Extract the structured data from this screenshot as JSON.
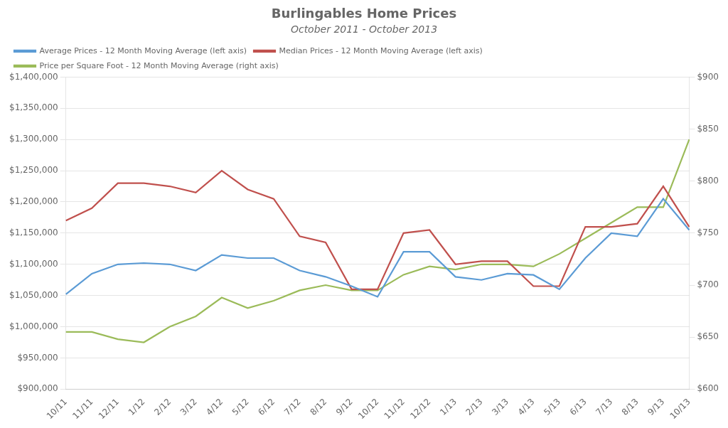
{
  "chart_data": {
    "type": "line",
    "title": "Burlingables Home Prices",
    "subtitle": "October 2011 - October 2013",
    "categories": [
      "10/11",
      "11/11",
      "12/11",
      "1/12",
      "2/12",
      "3/12",
      "4/12",
      "5/12",
      "6/12",
      "7/12",
      "8/12",
      "9/12",
      "10/12",
      "11/12",
      "12/12",
      "1/13",
      "2/13",
      "3/13",
      "4/13",
      "5/13",
      "6/13",
      "7/13",
      "8/13",
      "9/13",
      "10/13"
    ],
    "series": [
      {
        "name": "Average Prices - 12 Month Moving Average (left axis)",
        "color": "#5b9bd5",
        "values": [
          1052000,
          1085000,
          1100000,
          1102000,
          1100000,
          1090000,
          1115000,
          1110000,
          1110000,
          1090000,
          1080000,
          1065000,
          1048000,
          1120000,
          1120000,
          1080000,
          1075000,
          1085000,
          1083000,
          1060000,
          1110000,
          1150000,
          1145000,
          1205000,
          1155000
        ]
      },
      {
        "name": "Median Prices - 12 Month Moving Average (left axis)",
        "color": "#c0504d",
        "values": [
          1170000,
          1190000,
          1230000,
          1230000,
          1225000,
          1215000,
          1250000,
          1220000,
          1205000,
          1145000,
          1135000,
          1060000,
          1060000,
          1150000,
          1155000,
          1100000,
          1105000,
          1105000,
          1065000,
          1065000,
          1160000,
          1160000,
          1165000,
          1225000,
          1160000
        ]
      },
      {
        "name": "Price per Square Foot - 12 Month Moving Average (right axis)",
        "color": "#9bbb59",
        "axis": "y2",
        "values": [
          655,
          655,
          648,
          645,
          660,
          670,
          688,
          678,
          685,
          695,
          700,
          695,
          695,
          710,
          718,
          715,
          720,
          720,
          718,
          730,
          745,
          760,
          775,
          775,
          840
        ]
      }
    ],
    "ylim": [
      900000,
      1400000
    ],
    "yticks": [
      {
        "value": 900000,
        "label": "$900,000"
      },
      {
        "value": 950000,
        "label": "$950,000"
      },
      {
        "value": 1000000,
        "label": "$1,000,000"
      },
      {
        "value": 1050000,
        "label": "$1,050,000"
      },
      {
        "value": 1100000,
        "label": "$1,100,000"
      },
      {
        "value": 1150000,
        "label": "$1,150,000"
      },
      {
        "value": 1200000,
        "label": "$1,200,000"
      },
      {
        "value": 1250000,
        "label": "$1,250,000"
      },
      {
        "value": 1300000,
        "label": "$1,300,000"
      },
      {
        "value": 1350000,
        "label": "$1,350,000"
      },
      {
        "value": 1400000,
        "label": "$1,400,000"
      }
    ],
    "y2lim": [
      600,
      900
    ],
    "y2ticks": [
      {
        "value": 600,
        "label": "$600"
      },
      {
        "value": 650,
        "label": "$650"
      },
      {
        "value": 700,
        "label": "$700"
      },
      {
        "value": 750,
        "label": "$750"
      },
      {
        "value": 800,
        "label": "$800"
      },
      {
        "value": 850,
        "label": "$850"
      },
      {
        "value": 900,
        "label": "$900"
      }
    ],
    "grid": true,
    "legend": "upper left"
  }
}
